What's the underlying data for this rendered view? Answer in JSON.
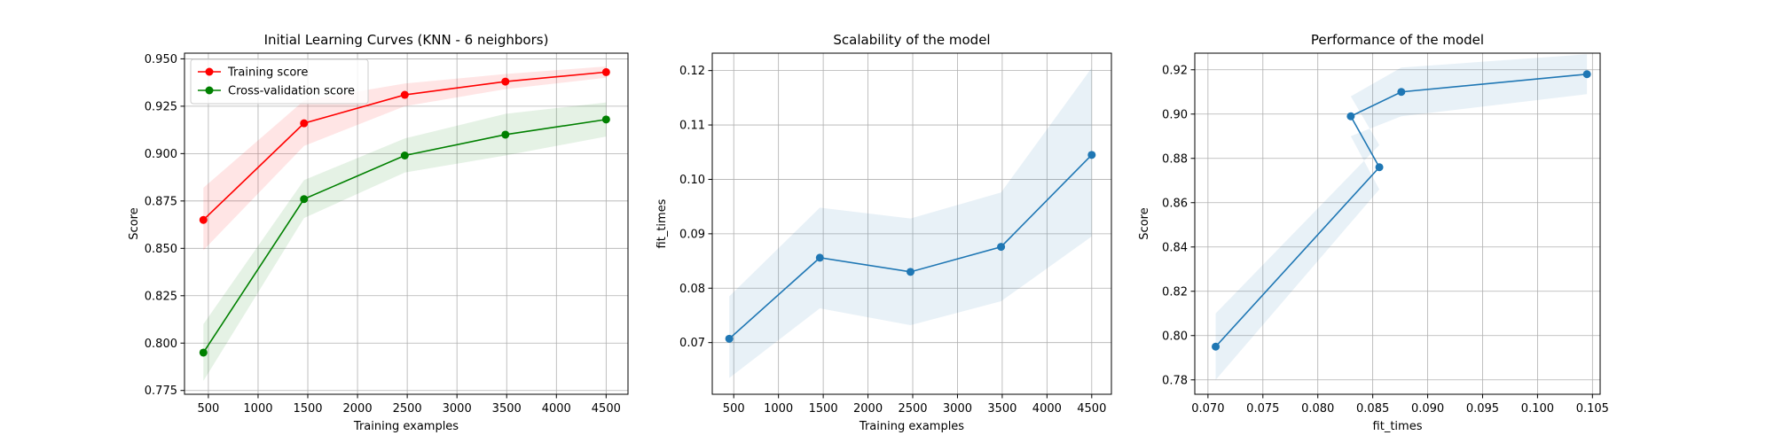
{
  "chart_data": [
    {
      "type": "line",
      "title": "Initial Learning Curves (KNN - 6 neighbors)",
      "xlabel": "Training examples",
      "ylabel": "Score",
      "xlim": [
        260,
        4720
      ],
      "ylim": [
        0.773,
        0.953
      ],
      "xticks": [
        500,
        1000,
        1500,
        2000,
        2500,
        3000,
        3500,
        4000,
        4500
      ],
      "yticks": [
        0.775,
        0.8,
        0.825,
        0.85,
        0.875,
        0.9,
        0.925,
        0.95
      ],
      "ytick_labels": [
        "0.775",
        "0.800",
        "0.825",
        "0.850",
        "0.875",
        "0.900",
        "0.925",
        "0.950"
      ],
      "grid": true,
      "legend": "upper-left",
      "series": [
        {
          "name": "Training score",
          "color": "#ff0000",
          "x": [
            450,
            1462,
            2475,
            3487,
            4500
          ],
          "y": [
            0.865,
            0.916,
            0.931,
            0.938,
            0.943
          ],
          "lower": [
            0.849,
            0.904,
            0.925,
            0.934,
            0.94
          ],
          "upper": [
            0.882,
            0.928,
            0.937,
            0.942,
            0.946
          ]
        },
        {
          "name": "Cross-validation score",
          "color": "#008000",
          "x": [
            450,
            1462,
            2475,
            3487,
            4500
          ],
          "y": [
            0.795,
            0.876,
            0.899,
            0.91,
            0.918
          ],
          "lower": [
            0.78,
            0.866,
            0.89,
            0.899,
            0.909
          ],
          "upper": [
            0.81,
            0.886,
            0.908,
            0.921,
            0.927
          ]
        }
      ]
    },
    {
      "type": "line",
      "title": "Scalability of the model",
      "xlabel": "Training examples",
      "ylabel": "fit_times",
      "xlim": [
        260,
        4720
      ],
      "ylim": [
        0.0605,
        0.1232
      ],
      "xticks": [
        500,
        1000,
        1500,
        2000,
        2500,
        3000,
        3500,
        4000,
        4500
      ],
      "yticks": [
        0.07,
        0.08,
        0.09,
        0.1,
        0.11,
        0.12
      ],
      "ytick_labels": [
        "0.07",
        "0.08",
        "0.09",
        "0.10",
        "0.11",
        "0.12"
      ],
      "grid": true,
      "series": [
        {
          "name": "",
          "color": "#1f77b4",
          "x": [
            450,
            1462,
            2475,
            3487,
            4500
          ],
          "y": [
            0.0707,
            0.0856,
            0.083,
            0.0876,
            0.1045
          ],
          "lower": [
            0.0635,
            0.0763,
            0.0732,
            0.0776,
            0.0895
          ],
          "upper": [
            0.0785,
            0.0948,
            0.0928,
            0.0976,
            0.1205
          ]
        }
      ]
    },
    {
      "type": "line",
      "title": "Performance of the model",
      "xlabel": "fit_times",
      "ylabel": "Score",
      "xlim": [
        0.0688,
        0.1057
      ],
      "ylim": [
        0.7735,
        0.9275
      ],
      "xticks": [
        0.07,
        0.075,
        0.08,
        0.085,
        0.09,
        0.095,
        0.1,
        0.105
      ],
      "xtick_labels": [
        "0.070",
        "0.075",
        "0.080",
        "0.085",
        "0.090",
        "0.095",
        "0.100",
        "0.105"
      ],
      "yticks": [
        0.78,
        0.8,
        0.82,
        0.84,
        0.86,
        0.88,
        0.9,
        0.92
      ],
      "ytick_labels": [
        "0.78",
        "0.80",
        "0.82",
        "0.84",
        "0.86",
        "0.88",
        "0.90",
        "0.92"
      ],
      "grid": true,
      "series": [
        {
          "name": "",
          "color": "#1f77b4",
          "x": [
            0.0707,
            0.0856,
            0.083,
            0.0876,
            0.1045
          ],
          "y": [
            0.795,
            0.876,
            0.899,
            0.91,
            0.918
          ],
          "lower": [
            0.78,
            0.866,
            0.89,
            0.899,
            0.909
          ],
          "upper": [
            0.81,
            0.886,
            0.908,
            0.921,
            0.927
          ]
        }
      ]
    }
  ]
}
